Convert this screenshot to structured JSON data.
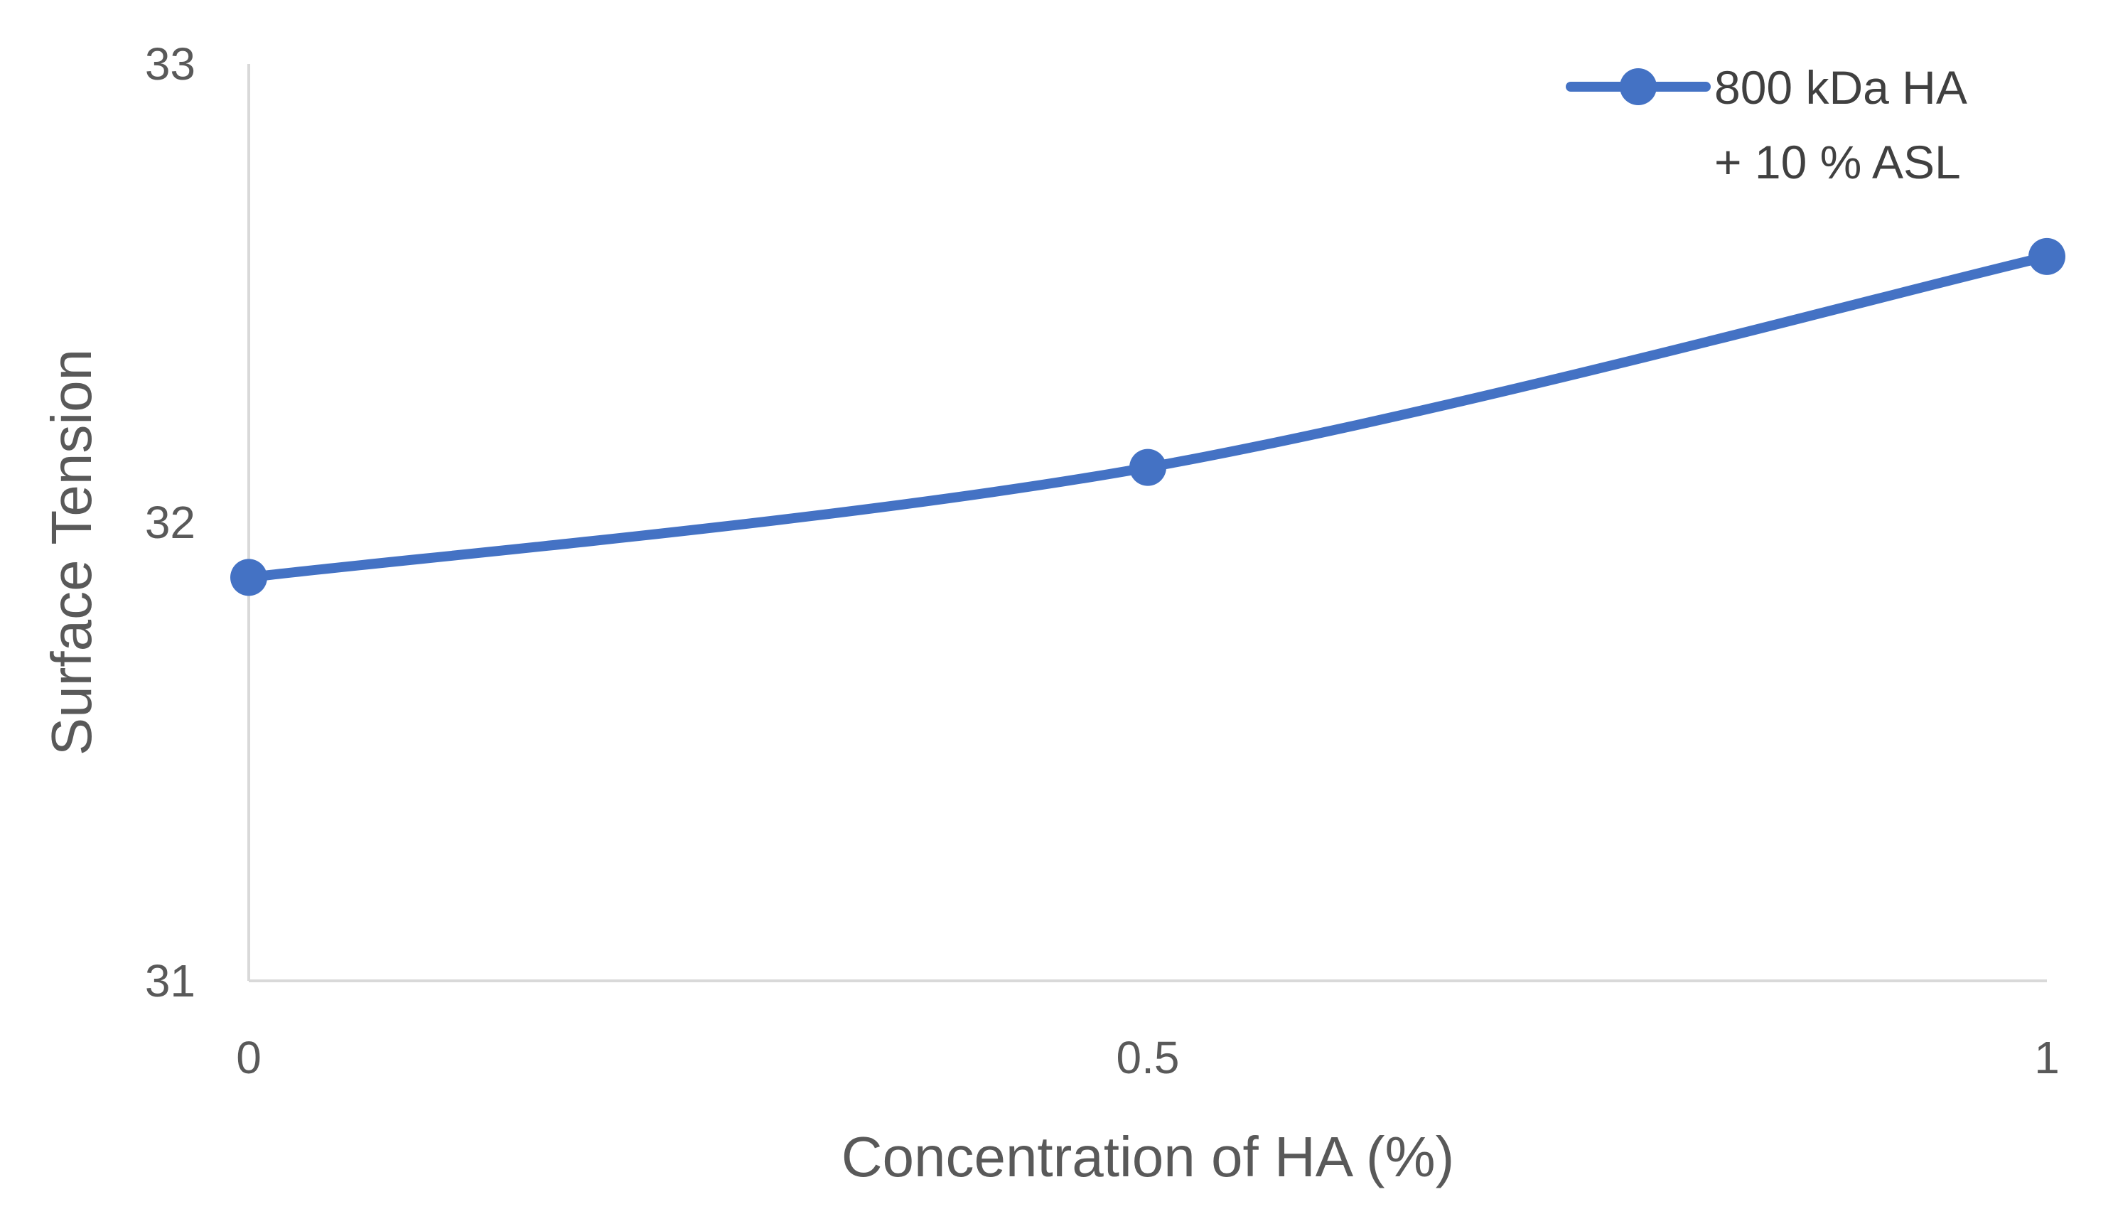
{
  "chart_data": {
    "type": "line",
    "title": "",
    "xlabel": "Concentration of HA (%)",
    "ylabel": "Surface Tension",
    "x": [
      0,
      0.5,
      1
    ],
    "x_tick_labels": [
      "0",
      "0.5",
      "1"
    ],
    "y_tick_labels": [
      "31",
      "32",
      "33"
    ],
    "ylim": [
      31,
      33
    ],
    "xlim": [
      0,
      1
    ],
    "grid": false,
    "legend_position": "top-right",
    "series": [
      {
        "name_lines": [
          "800 kDa HA",
          "+ 10 % ASL"
        ],
        "values": [
          31.88,
          32.12,
          32.58
        ],
        "color": "#4472C4",
        "smoothed": true,
        "marker": "circle"
      }
    ]
  }
}
